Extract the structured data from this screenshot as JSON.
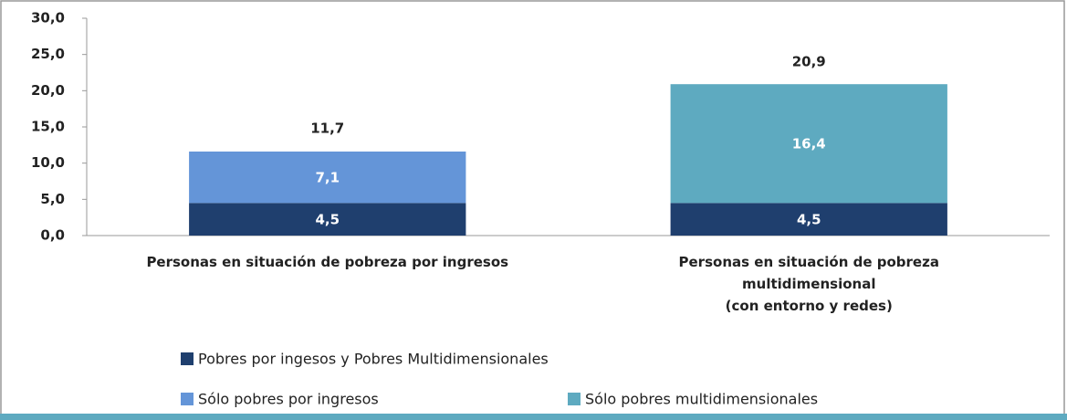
{
  "chart_data": {
    "type": "stacked_bar",
    "categories": [
      "Personas en situación de pobreza por ingresos",
      "Personas en situación de pobreza\nmultidimensional\n(con entorno y redes)"
    ],
    "series": [
      {
        "name": "Pobres por ingesos y Pobres Multidimensionales",
        "color": "#1f3f6e",
        "values": [
          4.5,
          4.5
        ],
        "value_labels": [
          "4,5",
          "4,5"
        ]
      },
      {
        "name": "Sólo pobres por ingresos",
        "color": "#6495d8",
        "values": [
          7.1,
          null
        ],
        "value_labels": [
          "7,1",
          null
        ]
      },
      {
        "name": "Sólo pobres multidimensionales",
        "color": "#5eaac0",
        "values": [
          null,
          16.4
        ],
        "value_labels": [
          null,
          "16,4"
        ]
      }
    ],
    "totals": [
      11.7,
      20.9
    ],
    "total_labels": [
      "11,7",
      "20,9"
    ],
    "ylim": [
      0,
      30
    ],
    "yticks": [
      {
        "value": 0,
        "label": "0,0"
      },
      {
        "value": 5,
        "label": "5,0"
      },
      {
        "value": 10,
        "label": "10,0"
      },
      {
        "value": 15,
        "label": "15,0"
      },
      {
        "value": 20,
        "label": "20,0"
      },
      {
        "value": 25,
        "label": "25,0"
      },
      {
        "value": 30,
        "label": "30,0"
      }
    ],
    "legend": "bottom"
  }
}
